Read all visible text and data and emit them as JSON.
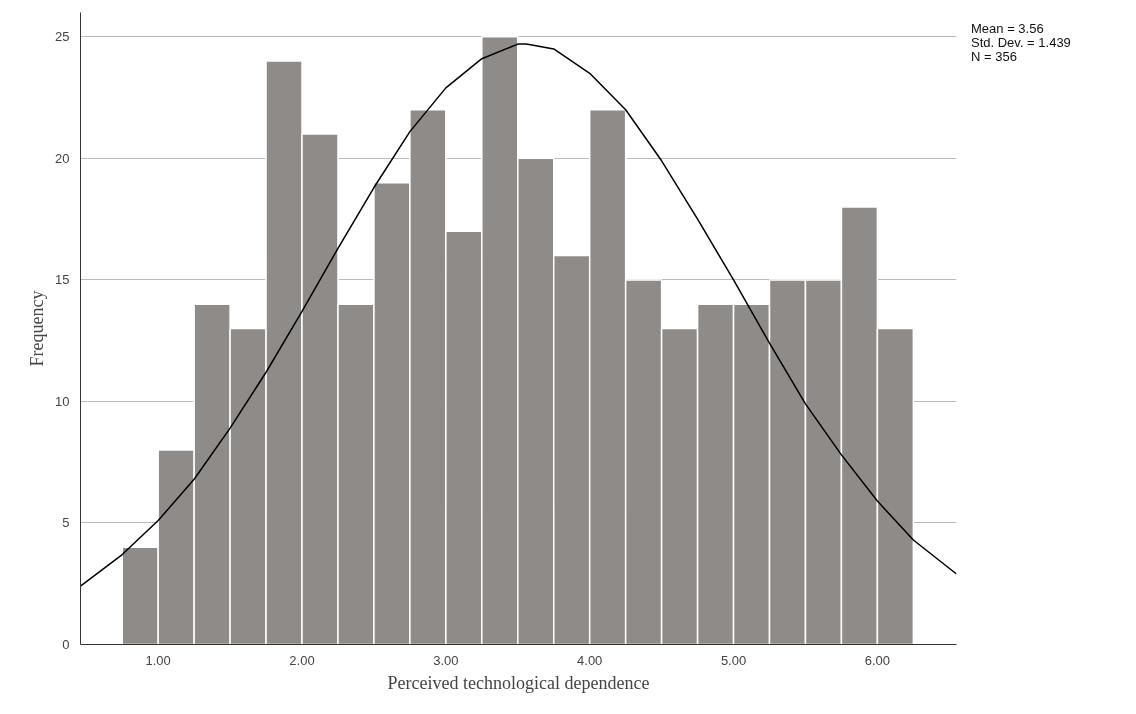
{
  "chart_data": {
    "type": "histogram",
    "xlabel": "Perceived technological dependence",
    "ylabel": "Frequency",
    "bins": [
      0.75,
      1.0,
      1.25,
      1.5,
      1.75,
      2.0,
      2.25,
      2.5,
      2.75,
      3.0,
      3.25,
      3.5,
      3.75,
      4.0,
      4.25,
      4.5,
      4.75,
      5.0,
      5.25,
      5.5,
      5.75,
      6.0,
      6.25
    ],
    "values": [
      4,
      8,
      14,
      13,
      24,
      21,
      14,
      19,
      22,
      17,
      25,
      20,
      16,
      22,
      15,
      13,
      14,
      14,
      15,
      15,
      18,
      13
    ],
    "color": "#8f8b89",
    "series": [
      {
        "type": "line",
        "color": "#000000",
        "x": [
          0.46,
          0.75,
          1.0,
          1.25,
          1.5,
          1.75,
          2.0,
          2.25,
          2.5,
          2.75,
          3.0,
          3.25,
          3.5,
          3.56,
          3.75,
          4.0,
          4.25,
          4.5,
          4.75,
          5.0,
          5.25,
          5.5,
          5.75,
          6.0,
          6.25,
          6.55
        ],
        "values": [
          2.4,
          3.7,
          5.1,
          6.8,
          8.9,
          11.2,
          13.7,
          16.3,
          18.8,
          21.1,
          22.9,
          24.1,
          24.7,
          24.7,
          24.5,
          23.5,
          22.0,
          19.9,
          17.5,
          15.0,
          12.4,
          9.9,
          7.8,
          5.9,
          4.3,
          2.9
        ]
      }
    ],
    "xlim": [
      0.46,
      6.55
    ],
    "xticks": [
      {
        "value": 1,
        "label": "1.00"
      },
      {
        "value": 2,
        "label": "2.00"
      },
      {
        "value": 3,
        "label": "3.00"
      },
      {
        "value": 4,
        "label": "4.00"
      },
      {
        "value": 5,
        "label": "5.00"
      },
      {
        "value": 6,
        "label": "6.00"
      }
    ],
    "ylim": [
      0,
      26
    ],
    "yticks": [
      0,
      5,
      10,
      15,
      20,
      25
    ],
    "grid": "y",
    "annotations": [
      "Mean = 3.56",
      "Std. Dev. = 1.439",
      "N = 356"
    ]
  }
}
